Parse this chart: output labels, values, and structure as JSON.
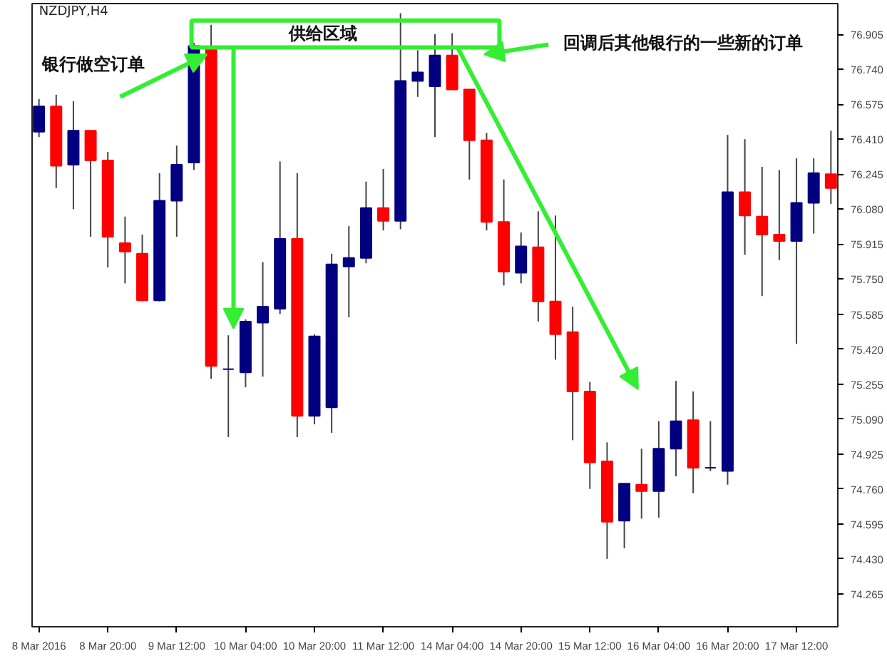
{
  "chart_data": {
    "type": "candlestick",
    "title": "NZDJPY,H4",
    "categories": [
      "8 Mar 2016",
      null,
      null,
      null,
      "8 Mar 20:00",
      null,
      null,
      null,
      "9 Mar 12:00",
      null,
      null,
      null,
      "10 Mar 04:00",
      null,
      null,
      null,
      "10 Mar 20:00",
      null,
      null,
      null,
      "11 Mar 12:00",
      null,
      null,
      null,
      "14 Mar 04:00",
      null,
      null,
      null,
      "14 Mar 20:00",
      null,
      null,
      null,
      "15 Mar 12:00",
      null,
      null,
      null,
      "16 Mar 04:00",
      null,
      null,
      null,
      "16 Mar 20:00",
      null,
      null,
      null,
      "17 Mar 12:00",
      null,
      null
    ],
    "ohlc": [
      [
        76.445,
        76.6,
        76.42,
        76.565
      ],
      [
        76.565,
        76.62,
        76.18,
        76.285
      ],
      [
        76.29,
        76.59,
        76.08,
        76.45
      ],
      [
        76.45,
        76.45,
        75.95,
        76.31
      ],
      [
        76.31,
        76.35,
        75.805,
        75.95
      ],
      [
        75.92,
        76.045,
        75.73,
        75.88
      ],
      [
        75.87,
        75.96,
        75.645,
        75.65
      ],
      [
        75.65,
        76.25,
        75.645,
        76.12
      ],
      [
        76.12,
        76.38,
        75.95,
        76.29
      ],
      [
        76.3,
        76.865,
        76.265,
        76.85
      ],
      [
        76.845,
        76.95,
        75.28,
        75.34
      ],
      [
        75.325,
        75.485,
        75.005,
        75.325
      ],
      [
        75.31,
        75.56,
        75.24,
        75.55
      ],
      [
        75.545,
        75.83,
        75.29,
        75.62
      ],
      [
        75.61,
        76.305,
        75.585,
        75.94
      ],
      [
        75.94,
        76.25,
        75.005,
        75.105
      ],
      [
        75.105,
        75.49,
        75.065,
        75.48
      ],
      [
        75.145,
        75.87,
        75.025,
        75.82
      ],
      [
        75.81,
        76.0,
        75.57,
        75.85
      ],
      [
        75.85,
        76.21,
        75.825,
        76.085
      ],
      [
        76.085,
        76.27,
        75.98,
        76.025
      ],
      [
        76.025,
        77.005,
        75.985,
        76.685
      ],
      [
        76.685,
        76.83,
        76.61,
        76.725
      ],
      [
        76.66,
        76.905,
        76.42,
        76.805
      ],
      [
        76.805,
        76.91,
        76.645,
        76.645
      ],
      [
        76.645,
        76.645,
        76.22,
        76.405
      ],
      [
        76.405,
        76.44,
        75.98,
        76.02
      ],
      [
        76.02,
        76.22,
        75.72,
        75.785
      ],
      [
        75.78,
        75.97,
        75.73,
        75.905
      ],
      [
        75.9,
        76.07,
        75.55,
        75.645
      ],
      [
        75.645,
        76.05,
        75.37,
        75.49
      ],
      [
        75.5,
        75.62,
        74.99,
        75.22
      ],
      [
        75.22,
        75.265,
        74.76,
        74.885
      ],
      [
        74.89,
        74.98,
        74.43,
        74.605
      ],
      [
        74.61,
        74.785,
        74.48,
        74.785
      ],
      [
        74.78,
        74.95,
        74.62,
        74.75
      ],
      [
        74.75,
        75.08,
        74.625,
        74.95
      ],
      [
        74.95,
        75.27,
        74.82,
        75.08
      ],
      [
        75.085,
        75.22,
        74.74,
        74.86
      ],
      [
        74.86,
        75.08,
        74.845,
        74.86
      ],
      [
        74.845,
        76.43,
        74.78,
        76.16
      ],
      [
        76.16,
        76.41,
        75.865,
        76.05
      ],
      [
        76.045,
        76.28,
        75.67,
        75.96
      ],
      [
        75.96,
        76.265,
        75.84,
        75.93
      ],
      [
        75.93,
        76.32,
        75.445,
        76.11
      ],
      [
        76.11,
        76.32,
        75.965,
        76.25
      ],
      [
        76.245,
        76.45,
        76.105,
        76.18
      ]
    ],
    "colors": [
      "#000080",
      "#ff0000",
      "#000080",
      "#ff0000",
      "#ff0000",
      "#ff0000",
      "#ff0000",
      "#000080",
      "#000080",
      "#000080",
      "#ff0000",
      "#000080",
      "#000080",
      "#000080",
      "#000080",
      "#ff0000",
      "#000080",
      "#000080",
      "#000080",
      "#000080",
      "#ff0000",
      "#000080",
      "#000080",
      "#000080",
      "#ff0000",
      "#ff0000",
      "#ff0000",
      "#ff0000",
      "#000080",
      "#ff0000",
      "#ff0000",
      "#ff0000",
      "#ff0000",
      "#ff0000",
      "#000080",
      "#ff0000",
      "#000080",
      "#000080",
      "#ff0000",
      "#000080",
      "#000080",
      "#ff0000",
      "#ff0000",
      "#ff0000",
      "#000080",
      "#000080",
      "#ff0000"
    ],
    "ylim": [
      74.11,
      77.05
    ],
    "yticks": [
      76.905,
      {
        "value": 76.74,
        "label": "76.740"
      },
      76.575,
      {
        "value": 76.41,
        "label": "76.410"
      },
      76.245,
      {
        "value": 76.08,
        "label": "76.080"
      },
      75.915,
      {
        "value": 75.75,
        "label": "75.750"
      },
      75.585,
      {
        "value": 75.42,
        "label": "75.420"
      },
      75.255,
      {
        "value": 75.09,
        "label": "75.090"
      },
      74.925,
      {
        "value": 74.76,
        "label": "74.760"
      },
      74.595,
      {
        "value": 74.43,
        "label": "74.430"
      },
      74.265
    ],
    "annotations": [
      "银行做空订单",
      "供给区域",
      "回调后其他银行的一些新的订单"
    ]
  }
}
